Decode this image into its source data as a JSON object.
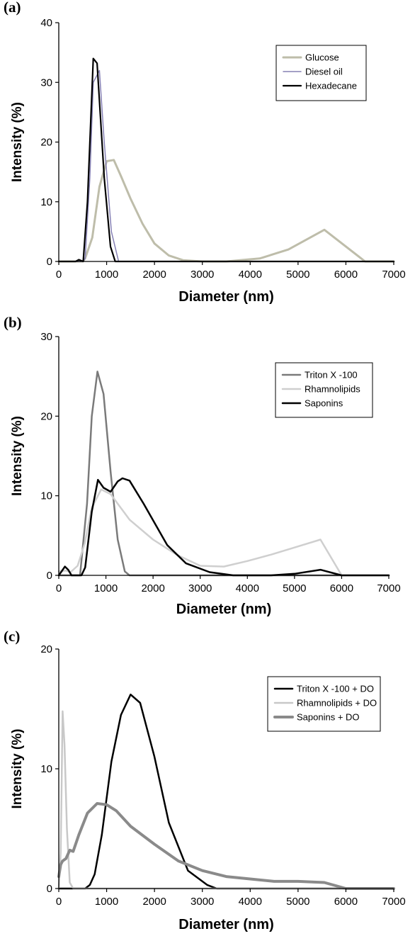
{
  "chart_data": [
    {
      "type": "line",
      "panel_label": "(a)",
      "xlabel": "Diameter (nm)",
      "ylabel": "Intensity (%)",
      "xlim": [
        0,
        7000
      ],
      "ylim": [
        0,
        40
      ],
      "xticks": [
        0,
        1000,
        2000,
        3000,
        4000,
        5000,
        6000,
        7000
      ],
      "yticks": [
        0,
        10,
        20,
        30,
        40
      ],
      "legend_position": "top-right",
      "grid": false,
      "series": [
        {
          "name": "Glucose",
          "color": "#bebdaa",
          "width": 3,
          "x": [
            0,
            500,
            550,
            700,
            850,
            1000,
            1150,
            1300,
            1500,
            1750,
            2000,
            2300,
            2600,
            3000,
            3500,
            4200,
            4800,
            5550,
            6400,
            7000
          ],
          "y": [
            0,
            0,
            0.5,
            4,
            12.5,
            16.8,
            17,
            14.3,
            10.5,
            6.3,
            3,
            1,
            0.2,
            0,
            0,
            0.5,
            2,
            5.3,
            0,
            0
          ]
        },
        {
          "name": "Diesel oil",
          "color": "#8580b4",
          "width": 1.5,
          "x": [
            0,
            500,
            550,
            650,
            720,
            850,
            950,
            1100,
            1250,
            7000
          ],
          "y": [
            0,
            0,
            0.5,
            14,
            30,
            32,
            20,
            5,
            0,
            0
          ]
        },
        {
          "name": "Hexadecane",
          "color": "#000000",
          "width": 2.2,
          "x": [
            0,
            350,
            420,
            510,
            600,
            720,
            800,
            950,
            1080,
            1180,
            7000
          ],
          "y": [
            0,
            0,
            0.3,
            0,
            10,
            34,
            33.2,
            14,
            2.5,
            0,
            0
          ]
        }
      ]
    },
    {
      "type": "line",
      "panel_label": "(b)",
      "xlabel": "Diameter (nm)",
      "ylabel": "Intensity (%)",
      "xlim": [
        0,
        7000
      ],
      "ylim": [
        0,
        30
      ],
      "xticks": [
        0,
        1000,
        2000,
        3000,
        4000,
        5000,
        6000,
        7000
      ],
      "yticks": [
        0,
        10,
        20,
        30
      ],
      "legend_position": "top-right",
      "grid": false,
      "series": [
        {
          "name": "Triton X -100",
          "color": "#7a7a7a",
          "width": 2.5,
          "x": [
            0,
            450,
            600,
            700,
            820,
            950,
            1100,
            1250,
            1400,
            1500,
            7000
          ],
          "y": [
            0,
            0,
            9,
            20,
            25.6,
            22.8,
            13,
            4.5,
            0.5,
            0,
            0
          ]
        },
        {
          "name": "Rhamnolipids",
          "color": "#cfcfcf",
          "width": 2.5,
          "x": [
            0,
            150,
            250,
            400,
            550,
            700,
            900,
            1100,
            1500,
            2000,
            2500,
            3000,
            3500,
            4000,
            4500,
            5000,
            5550,
            6000,
            7000
          ],
          "y": [
            0.5,
            0.6,
            0.4,
            1.2,
            4,
            8.5,
            10.8,
            10.2,
            7,
            4.5,
            2.6,
            1.2,
            1.1,
            1.8,
            2.6,
            3.5,
            4.5,
            0,
            0
          ]
        },
        {
          "name": "Saponins",
          "color": "#000000",
          "width": 2.5,
          "x": [
            0,
            60,
            130,
            200,
            270,
            480,
            560,
            700,
            830,
            950,
            1100,
            1250,
            1350,
            1500,
            1800,
            2300,
            2700,
            3200,
            3700,
            4500,
            5000,
            5550,
            6000,
            7000
          ],
          "y": [
            0,
            0.5,
            1.1,
            0.7,
            0,
            0,
            1,
            8,
            12,
            11,
            10.5,
            11.8,
            12.2,
            11.9,
            9,
            3.8,
            1.5,
            0.4,
            0,
            0,
            0.2,
            0.7,
            0,
            0
          ]
        }
      ]
    },
    {
      "type": "line",
      "panel_label": "(c)",
      "xlabel": "Diameter (nm)",
      "ylabel": "Intensity (%)",
      "xlim": [
        0,
        7000
      ],
      "ylim": [
        0,
        20
      ],
      "xticks": [
        0,
        1000,
        2000,
        3000,
        4000,
        5000,
        6000,
        7000
      ],
      "yticks": [
        0,
        10,
        20
      ],
      "legend_position": "top-right",
      "grid": false,
      "series": [
        {
          "name": "Triton X -100 + DO",
          "color": "#000000",
          "width": 2.5,
          "x": [
            0,
            550,
            650,
            750,
            900,
            1100,
            1300,
            1500,
            1700,
            2000,
            2300,
            2700,
            3100,
            3300,
            7000
          ],
          "y": [
            0,
            0,
            0.3,
            1.2,
            4.5,
            10.6,
            14.5,
            16.2,
            15.5,
            11,
            5.5,
            1.5,
            0.3,
            0,
            0
          ]
        },
        {
          "name": "Rhamnolipids + DO",
          "color": "#c8c8c8",
          "width": 2.5,
          "x": [
            0,
            40,
            80,
            120,
            170,
            230,
            300,
            7000
          ],
          "y": [
            0,
            3,
            14.8,
            12,
            5,
            0.5,
            0,
            0
          ]
        },
        {
          "name": "Saponins + DO",
          "color": "#8a8a8a",
          "width": 4,
          "x": [
            0,
            40,
            80,
            150,
            230,
            300,
            420,
            600,
            800,
            1000,
            1200,
            1500,
            2000,
            2500,
            3000,
            3500,
            4000,
            4500,
            5000,
            5550,
            6000,
            6400,
            7000
          ],
          "y": [
            1,
            2,
            2.3,
            2.5,
            3.2,
            3.1,
            4.5,
            6.3,
            7.1,
            7,
            6.5,
            5.2,
            3.7,
            2.3,
            1.5,
            1,
            0.8,
            0.6,
            0.6,
            0.5,
            0,
            0,
            0
          ]
        }
      ]
    }
  ]
}
